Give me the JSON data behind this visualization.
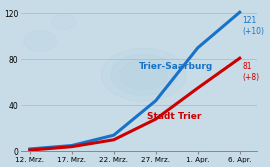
{
  "x_labels": [
    "12. Mrz.",
    "17. Mrz.",
    "22. Mrz.",
    "27. Mrz.",
    "1. Apr.",
    "6. Apr."
  ],
  "x_ticks": [
    0,
    5,
    10,
    15,
    20,
    25
  ],
  "trier_saarburg": [
    2,
    5,
    14,
    44,
    90,
    121
  ],
  "stadt_trier": [
    1,
    4,
    10,
    28,
    55,
    81
  ],
  "color_saarburg": "#1873c8",
  "color_trier": "#cc0000",
  "ylim": [
    0,
    128
  ],
  "yticks": [
    0,
    40,
    80,
    120
  ],
  "label_saarburg": "Trier-Saarburg",
  "label_trier": "Stadt Trier",
  "annotation_saarburg": "121\n(+10)",
  "annotation_trier": "81\n(+8)",
  "bg_color": "#c8dce8",
  "line_width": 2.2
}
